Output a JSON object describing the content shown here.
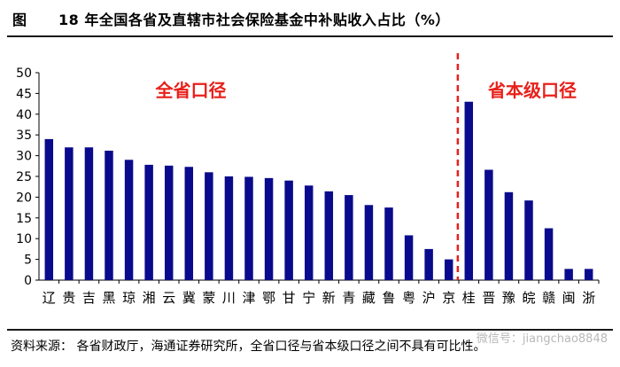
{
  "header": {
    "figure_label": "图",
    "title": "18 年全国各省及直辖市社会保险基金中补贴收入占比（%）"
  },
  "footer": {
    "source": "资料来源：  各省财政厅，海通证券研究所，全省口径与省本级口径之间不具有可比性。"
  },
  "watermark": {
    "text": "微信号：jiangchao8848"
  },
  "chart_data": {
    "type": "bar",
    "categories": [
      "辽",
      "贵",
      "吉",
      "黑",
      "琼",
      "湘",
      "云",
      "冀",
      "蒙",
      "川",
      "津",
      "鄂",
      "甘",
      "宁",
      "新",
      "青",
      "藏",
      "鲁",
      "粤",
      "沪",
      "京",
      "桂",
      "晋",
      "豫",
      "皖",
      "赣",
      "闽",
      "浙"
    ],
    "values": [
      34,
      32,
      32,
      31.2,
      29,
      27.8,
      27.6,
      27.3,
      26,
      25,
      24.9,
      24.6,
      24,
      22.8,
      21.4,
      20.5,
      18.1,
      17.5,
      10.8,
      7.5,
      5,
      43,
      26.6,
      21.2,
      19.2,
      12.5,
      2.7,
      2.7
    ],
    "groups": [
      {
        "label": "全省口径",
        "start": 0,
        "end": 20
      },
      {
        "label": "省本级口径",
        "start": 21,
        "end": 27
      }
    ],
    "ylim": [
      0,
      50
    ],
    "yticks": [
      0,
      5,
      10,
      15,
      20,
      25,
      30,
      35,
      40,
      45,
      50
    ],
    "bar_color": "#0a0a8c",
    "divider_color": "#e8201a",
    "group_label_color": "#e8201a",
    "grid": false,
    "title": "",
    "xlabel": "",
    "ylabel": ""
  }
}
